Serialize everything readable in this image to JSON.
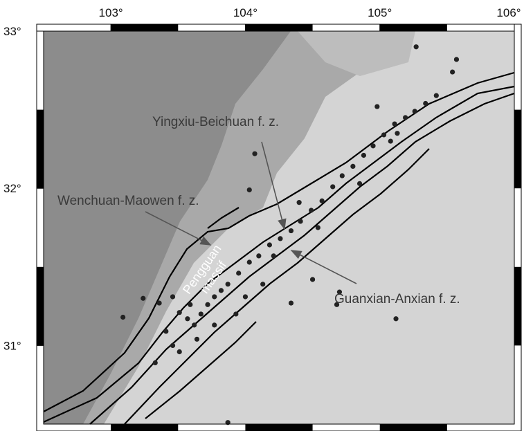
{
  "map": {
    "xlim": [
      102.5,
      106
    ],
    "ylim": [
      30.5,
      33
    ],
    "xticks": [
      {
        "value": 103,
        "label": "103°"
      },
      {
        "value": 104,
        "label": "104°"
      },
      {
        "value": 105,
        "label": "105°"
      },
      {
        "value": 106,
        "label": "106°"
      }
    ],
    "yticks": [
      {
        "value": 33,
        "label": "33°"
      },
      {
        "value": 32,
        "label": "32°"
      },
      {
        "value": 31,
        "label": "31°"
      }
    ],
    "annotations": [
      "Yingxiu-Beichuan f. z.",
      "Wenchuan-Maowen f. z.",
      "Guanxian-Anxian f. z."
    ],
    "massif": [
      "Pengguan",
      "massif"
    ],
    "epicenters": [
      [
        103.09,
        31.18
      ],
      [
        103.24,
        31.3
      ],
      [
        103.36,
        31.27
      ],
      [
        103.51,
        31.21
      ],
      [
        103.57,
        31.17
      ],
      [
        103.62,
        31.13
      ],
      [
        103.67,
        31.2
      ],
      [
        103.72,
        31.26
      ],
      [
        103.77,
        31.31
      ],
      [
        103.82,
        31.35
      ],
      [
        103.87,
        31.39
      ],
      [
        103.95,
        31.46
      ],
      [
        104.03,
        31.53
      ],
      [
        104.1,
        31.57
      ],
      [
        104.18,
        31.64
      ],
      [
        104.26,
        31.68
      ],
      [
        104.34,
        31.73
      ],
      [
        104.41,
        31.79
      ],
      [
        104.49,
        31.86
      ],
      [
        104.57,
        31.92
      ],
      [
        104.65,
        32.01
      ],
      [
        104.72,
        32.08
      ],
      [
        104.8,
        32.14
      ],
      [
        104.88,
        32.21
      ],
      [
        104.95,
        32.27
      ],
      [
        105.03,
        32.34
      ],
      [
        105.11,
        32.41
      ],
      [
        105.19,
        32.45
      ],
      [
        105.26,
        32.49
      ],
      [
        105.34,
        32.54
      ],
      [
        105.42,
        32.59
      ],
      [
        105.27,
        32.9
      ],
      [
        105.57,
        32.82
      ],
      [
        105.54,
        32.74
      ],
      [
        105.13,
        32.35
      ],
      [
        104.98,
        32.52
      ],
      [
        104.07,
        32.22
      ],
      [
        104.03,
        31.99
      ],
      [
        104.4,
        31.91
      ],
      [
        103.41,
        31.09
      ],
      [
        103.46,
        31.0
      ],
      [
        103.33,
        30.89
      ],
      [
        103.51,
        30.96
      ],
      [
        103.64,
        31.04
      ],
      [
        103.77,
        31.13
      ],
      [
        103.93,
        31.2
      ],
      [
        104.0,
        31.31
      ],
      [
        104.13,
        31.39
      ],
      [
        104.34,
        31.27
      ],
      [
        104.5,
        31.42
      ],
      [
        104.68,
        31.26
      ],
      [
        104.7,
        31.34
      ],
      [
        105.12,
        31.17
      ],
      [
        103.87,
        30.51
      ],
      [
        104.21,
        31.57
      ],
      [
        104.54,
        31.75
      ],
      [
        104.85,
        32.03
      ],
      [
        105.08,
        32.3
      ],
      [
        103.46,
        31.31
      ],
      [
        103.59,
        31.26
      ]
    ]
  }
}
